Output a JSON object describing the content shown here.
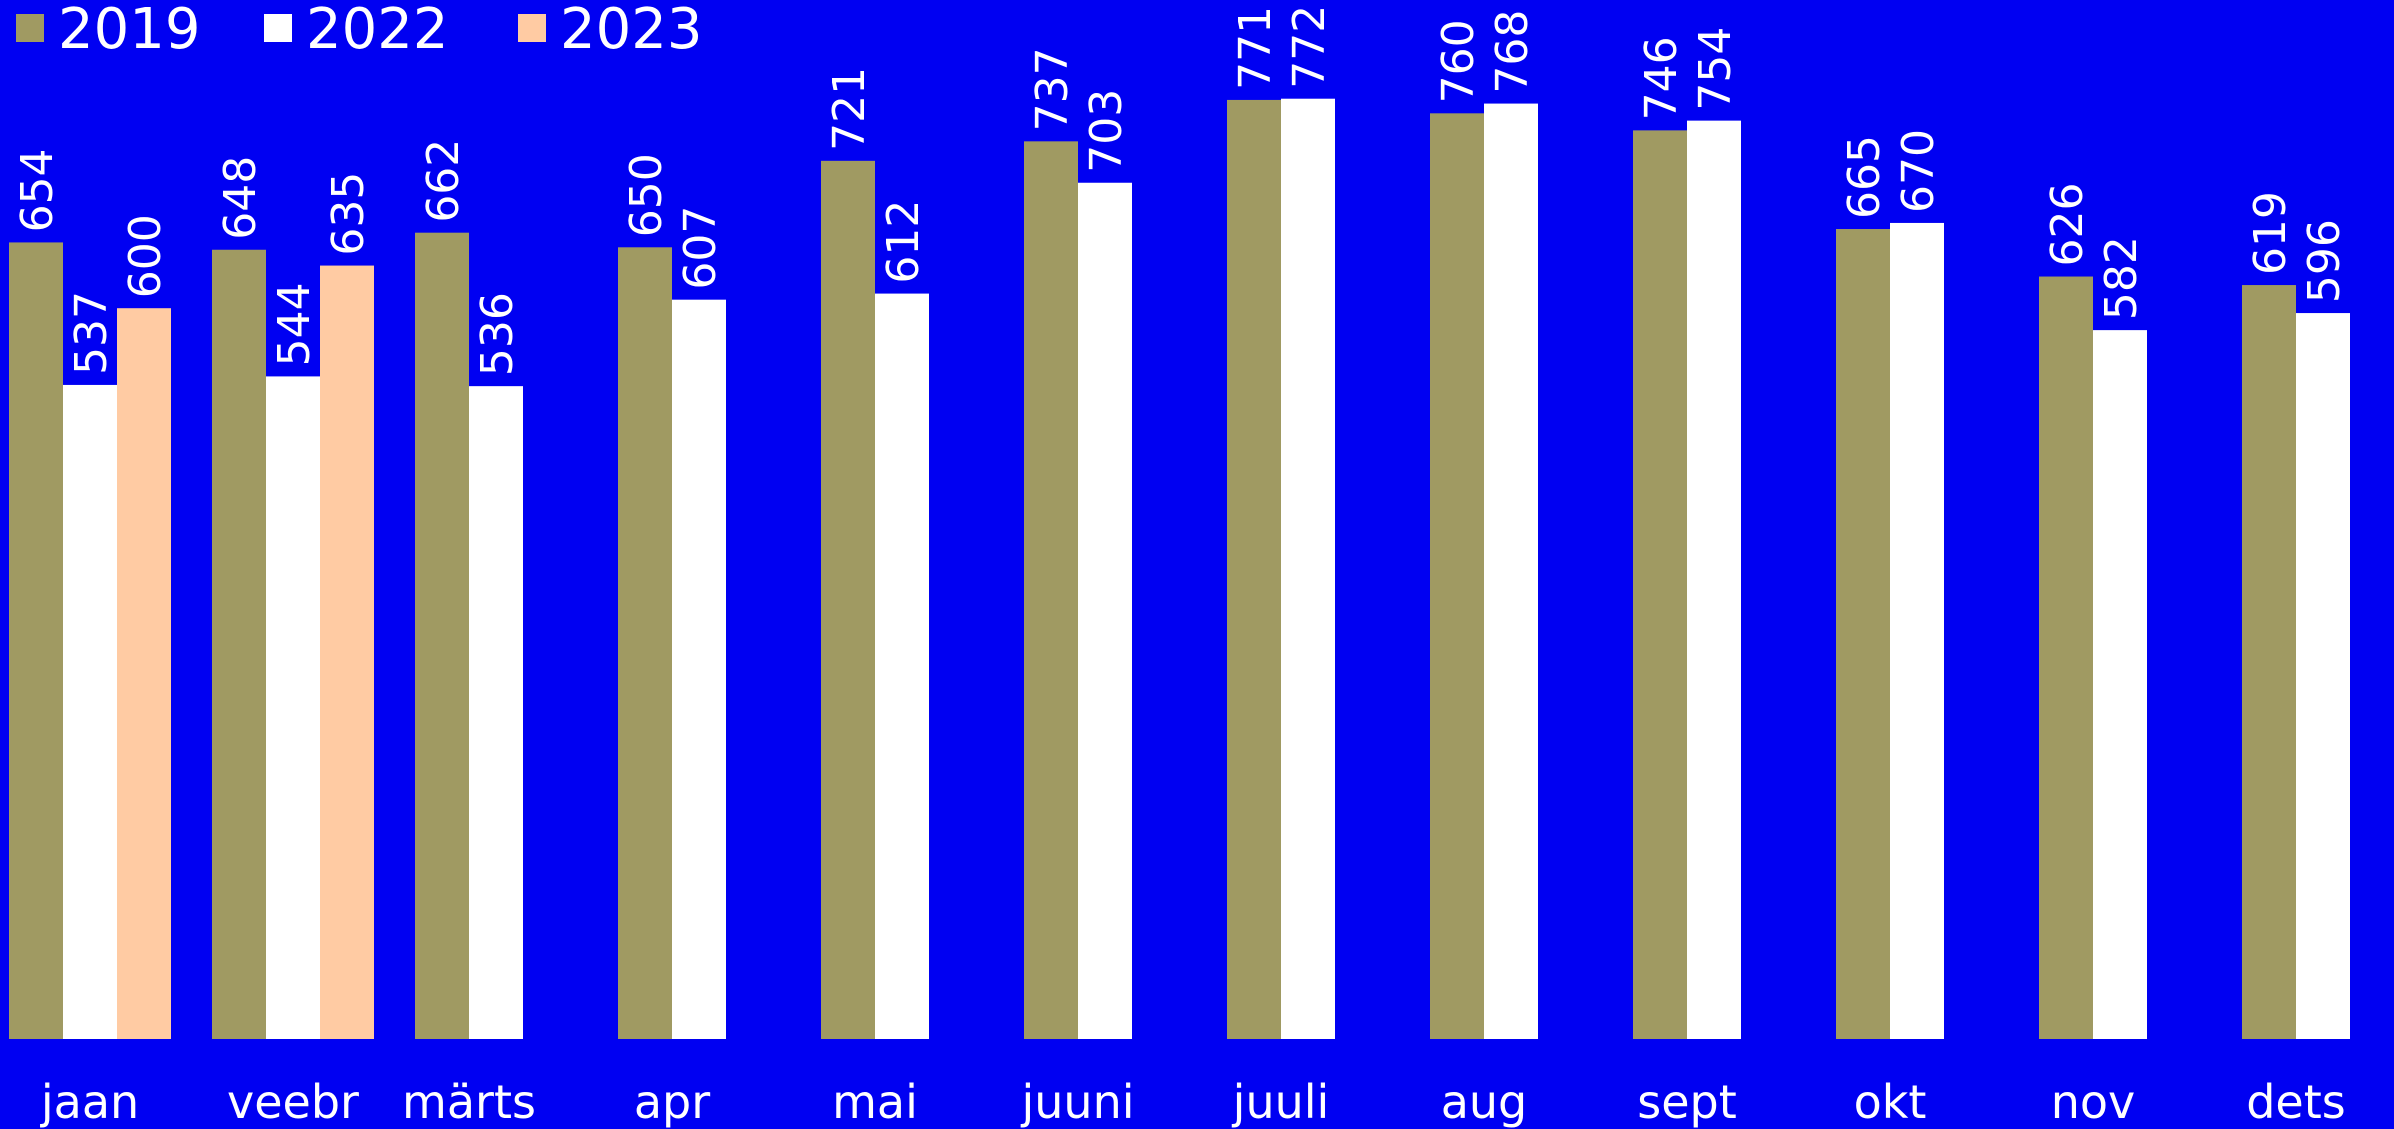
{
  "chart_data": {
    "type": "bar",
    "title": "",
    "xlabel": "",
    "ylabel": "",
    "ylim": [
      0,
      810
    ],
    "grid": false,
    "legend_position": "top-left",
    "background_color": "#0000F2",
    "label_color": "#FFFFFF",
    "categories": [
      "jaan",
      "veebr",
      "märts",
      "apr",
      "mai",
      "juuni",
      "juuli",
      "aug",
      "sept",
      "okt",
      "nov",
      "dets"
    ],
    "series": [
      {
        "name": "2019",
        "color": "#A09A62",
        "values": [
          654,
          648,
          662,
          650,
          721,
          737,
          771,
          760,
          746,
          665,
          626,
          619
        ]
      },
      {
        "name": "2022",
        "color": "#FFFFFF",
        "values": [
          537,
          544,
          536,
          607,
          612,
          703,
          772,
          768,
          754,
          670,
          582,
          596
        ]
      },
      {
        "name": "2023",
        "color": "#FFCBA3",
        "values": [
          600,
          635,
          null,
          null,
          null,
          null,
          null,
          null,
          null,
          null,
          null,
          null
        ]
      }
    ],
    "data_labels": true,
    "data_label_orientation": "vertical"
  }
}
